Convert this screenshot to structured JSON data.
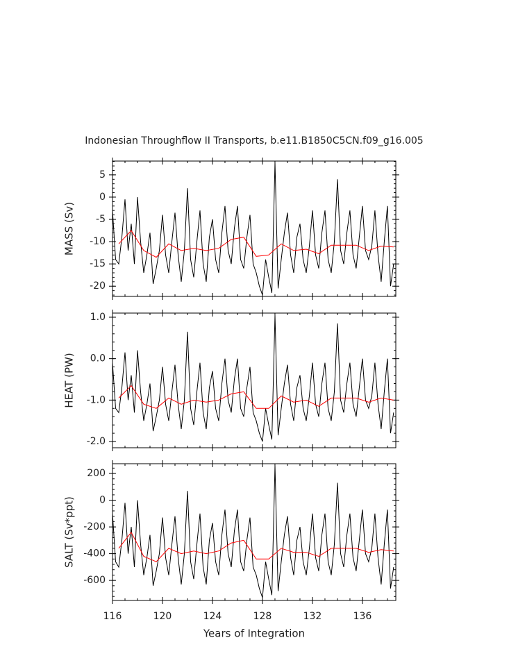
{
  "title": "Indonesian Throughflow II Transports, b.e11.B1850C5CN.f09_g16.005",
  "chart_data": [
    {
      "type": "line",
      "ylabel": "MASS (Sv)",
      "xlim": [
        116,
        138.67
      ],
      "xticks": [
        116,
        120,
        124,
        128,
        132,
        136
      ],
      "ylim": [
        -22.3,
        8.1
      ],
      "yticks": [
        5,
        0,
        -5,
        -10,
        -15,
        -20
      ],
      "series": [
        {
          "color": "#000000",
          "x": [
            116,
            116.25,
            116.5,
            116.75,
            117,
            117.25,
            117.5,
            117.75,
            118,
            118.25,
            118.5,
            118.75,
            119,
            119.25,
            119.5,
            119.75,
            120,
            120.25,
            120.5,
            120.75,
            121,
            121.25,
            121.5,
            121.75,
            122,
            122.25,
            122.5,
            122.75,
            123,
            123.25,
            123.5,
            123.75,
            124,
            124.25,
            124.5,
            124.75,
            125,
            125.25,
            125.5,
            125.75,
            126,
            126.25,
            126.5,
            126.75,
            127,
            127.25,
            127.5,
            127.75,
            128,
            128.25,
            128.5,
            128.75,
            129,
            129.25,
            129.5,
            129.75,
            130,
            130.25,
            130.5,
            130.75,
            131,
            131.25,
            131.5,
            131.75,
            132,
            132.25,
            132.5,
            132.75,
            133,
            133.25,
            133.5,
            133.75,
            134,
            134.25,
            134.5,
            134.75,
            135,
            135.25,
            135.5,
            135.75,
            136,
            136.25,
            136.5,
            136.75,
            137,
            137.25,
            137.5,
            137.75,
            138,
            138.25,
            138.5
          ],
          "values": [
            -3,
            -14,
            -15,
            -9,
            -0.5,
            -12,
            -6,
            -15,
            0,
            -10,
            -17,
            -13,
            -8,
            -19.5,
            -16,
            -12,
            -4,
            -13,
            -17,
            -10,
            -3.5,
            -13,
            -19,
            -12,
            2,
            -14,
            -18,
            -10,
            -3,
            -15,
            -19,
            -9,
            -5,
            -14,
            -17,
            -8,
            -2,
            -12,
            -15,
            -7,
            -2,
            -14,
            -16,
            -9,
            -4,
            -15,
            -17,
            -20,
            -22,
            -14,
            -18,
            -21.5,
            7.8,
            -20.5,
            -14,
            -8,
            -3.5,
            -13,
            -17,
            -9,
            -6,
            -14,
            -17,
            -11,
            -3,
            -13,
            -16,
            -8,
            -3,
            -14,
            -17,
            -10,
            4,
            -12,
            -15,
            -8,
            -3,
            -13,
            -16,
            -9,
            -2,
            -12,
            -14,
            -11,
            -3,
            -13,
            -19,
            -10,
            -2,
            -20,
            -15
          ]
        },
        {
          "color": "#ff0000",
          "x": [
            116.5,
            117.5,
            118.5,
            119.5,
            120.5,
            121.5,
            122.5,
            123.5,
            124.5,
            125.5,
            126.5,
            127.5,
            128.5,
            129.5,
            130.5,
            131.5,
            132.5,
            133.5,
            134.5,
            135.5,
            136.5,
            137.5,
            138.5
          ],
          "values": [
            -10.5,
            -7.5,
            -12,
            -13.5,
            -10.5,
            -12,
            -11.5,
            -12,
            -11.5,
            -9.5,
            -9,
            -13.3,
            -13,
            -10.5,
            -12,
            -11.7,
            -12.7,
            -10.8,
            -10.8,
            -10.8,
            -12,
            -11,
            -11.2
          ]
        }
      ]
    },
    {
      "type": "line",
      "ylabel": "HEAT (PW)",
      "xlim": [
        116,
        138.67
      ],
      "xticks": [
        116,
        120,
        124,
        128,
        132,
        136
      ],
      "ylim": [
        -2.15,
        1.1
      ],
      "yticks": [
        {
          "value": 1.0,
          "label": "1.0"
        },
        {
          "value": 0.0,
          "label": "0.0"
        },
        {
          "value": -1.0,
          "label": "-1.0"
        },
        {
          "value": -2.0,
          "label": "-2.0"
        }
      ],
      "series": [
        {
          "color": "#000000",
          "x": [
            116,
            116.25,
            116.5,
            116.75,
            117,
            117.25,
            117.5,
            117.75,
            118,
            118.25,
            118.5,
            118.75,
            119,
            119.25,
            119.5,
            119.75,
            120,
            120.25,
            120.5,
            120.75,
            121,
            121.25,
            121.5,
            121.75,
            122,
            122.25,
            122.5,
            122.75,
            123,
            123.25,
            123.5,
            123.75,
            124,
            124.25,
            124.5,
            124.75,
            125,
            125.25,
            125.5,
            125.75,
            126,
            126.25,
            126.5,
            126.75,
            127,
            127.25,
            127.5,
            127.75,
            128,
            128.25,
            128.5,
            128.75,
            129,
            129.25,
            129.5,
            129.75,
            130,
            130.25,
            130.5,
            130.75,
            131,
            131.25,
            131.5,
            131.75,
            132,
            132.25,
            132.5,
            132.75,
            133,
            133.25,
            133.5,
            133.75,
            134,
            134.25,
            134.5,
            134.75,
            135,
            135.25,
            135.5,
            135.75,
            136,
            136.25,
            136.5,
            136.75,
            137,
            137.25,
            137.5,
            137.75,
            138,
            138.25,
            138.5
          ],
          "values": [
            -0.1,
            -1.2,
            -1.3,
            -0.7,
            0.15,
            -1.0,
            -0.4,
            -1.3,
            0.2,
            -0.8,
            -1.5,
            -1.1,
            -0.6,
            -1.75,
            -1.4,
            -1.0,
            -0.2,
            -1.1,
            -1.5,
            -0.8,
            -0.15,
            -1.1,
            -1.7,
            -1.0,
            0.65,
            -1.2,
            -1.6,
            -0.8,
            -0.1,
            -1.3,
            -1.7,
            -0.7,
            -0.3,
            -1.2,
            -1.5,
            -0.6,
            0.0,
            -1.0,
            -1.3,
            -0.5,
            0.0,
            -1.2,
            -1.4,
            -0.7,
            -0.2,
            -1.3,
            -1.5,
            -1.8,
            -2.0,
            -1.2,
            -1.6,
            -1.95,
            1.05,
            -1.85,
            -1.2,
            -0.6,
            -0.15,
            -1.1,
            -1.5,
            -0.7,
            -0.4,
            -1.2,
            -1.5,
            -0.9,
            -0.1,
            -1.1,
            -1.4,
            -0.6,
            -0.1,
            -1.2,
            -1.5,
            -0.8,
            0.85,
            -1.0,
            -1.3,
            -0.6,
            -0.1,
            -1.1,
            -1.4,
            -0.7,
            0.0,
            -1.0,
            -1.2,
            -0.9,
            -0.1,
            -1.1,
            -1.7,
            -0.8,
            0.0,
            -1.8,
            -1.3
          ]
        },
        {
          "color": "#ff0000",
          "x": [
            116.5,
            117.5,
            118.5,
            119.5,
            120.5,
            121.5,
            122.5,
            123.5,
            124.5,
            125.5,
            126.5,
            127.5,
            128.5,
            129.5,
            130.5,
            131.5,
            132.5,
            133.5,
            134.5,
            135.5,
            136.5,
            137.5,
            138.5
          ],
          "values": [
            -0.95,
            -0.65,
            -1.1,
            -1.2,
            -0.95,
            -1.1,
            -1.0,
            -1.05,
            -1.0,
            -0.85,
            -0.8,
            -1.2,
            -1.2,
            -0.9,
            -1.05,
            -1.0,
            -1.15,
            -0.95,
            -0.95,
            -0.95,
            -1.05,
            -0.95,
            -1.0
          ]
        }
      ]
    },
    {
      "type": "line",
      "ylabel": "SALT (Sv*ppt)",
      "xlabel": "Years of Integration",
      "xlim": [
        116,
        138.67
      ],
      "xticks": [
        116,
        120,
        124,
        128,
        132,
        136
      ],
      "ylim": [
        -750,
        273
      ],
      "yticks": [
        200,
        0,
        -200,
        -400,
        -600
      ],
      "series": [
        {
          "color": "#000000",
          "x": [
            116,
            116.25,
            116.5,
            116.75,
            117,
            117.25,
            117.5,
            117.75,
            118,
            118.25,
            118.5,
            118.75,
            119,
            119.25,
            119.5,
            119.75,
            120,
            120.25,
            120.5,
            120.75,
            121,
            121.25,
            121.5,
            121.75,
            122,
            122.25,
            122.5,
            122.75,
            123,
            123.25,
            123.5,
            123.75,
            124,
            124.25,
            124.5,
            124.75,
            125,
            125.25,
            125.5,
            125.75,
            126,
            126.25,
            126.5,
            126.75,
            127,
            127.25,
            127.5,
            127.75,
            128,
            128.25,
            128.5,
            128.75,
            129,
            129.25,
            129.5,
            129.75,
            130,
            130.25,
            130.5,
            130.75,
            131,
            131.25,
            131.5,
            131.75,
            132,
            132.25,
            132.5,
            132.75,
            133,
            133.25,
            133.5,
            133.75,
            134,
            134.25,
            134.5,
            134.75,
            135,
            135.25,
            135.5,
            135.75,
            136,
            136.25,
            136.5,
            136.75,
            137,
            137.25,
            137.5,
            137.75,
            138,
            138.25,
            138.5
          ],
          "values": [
            -100,
            -460,
            -500,
            -300,
            -20,
            -400,
            -200,
            -500,
            0,
            -330,
            -560,
            -430,
            -260,
            -640,
            -530,
            -400,
            -130,
            -430,
            -560,
            -330,
            -120,
            -430,
            -630,
            -400,
            70,
            -460,
            -590,
            -330,
            -100,
            -500,
            -630,
            -300,
            -170,
            -460,
            -560,
            -260,
            -70,
            -400,
            -500,
            -230,
            -70,
            -460,
            -530,
            -300,
            -130,
            -500,
            -560,
            -660,
            -730,
            -460,
            -590,
            -710,
            260,
            -680,
            -460,
            -260,
            -120,
            -430,
            -560,
            -300,
            -200,
            -460,
            -560,
            -360,
            -100,
            -430,
            -530,
            -260,
            -100,
            -460,
            -560,
            -330,
            130,
            -400,
            -500,
            -260,
            -100,
            -430,
            -530,
            -300,
            -70,
            -400,
            -460,
            -360,
            -100,
            -430,
            -630,
            -330,
            -70,
            -660,
            -500
          ]
        },
        {
          "color": "#ff0000",
          "x": [
            116.5,
            117.5,
            118.5,
            119.5,
            120.5,
            121.5,
            122.5,
            123.5,
            124.5,
            125.5,
            126.5,
            127.5,
            128.5,
            129.5,
            130.5,
            131.5,
            132.5,
            133.5,
            134.5,
            135.5,
            136.5,
            137.5,
            138.5
          ],
          "values": [
            -360,
            -240,
            -420,
            -460,
            -360,
            -400,
            -380,
            -400,
            -380,
            -320,
            -300,
            -440,
            -440,
            -360,
            -390,
            -390,
            -420,
            -360,
            -360,
            -360,
            -390,
            -370,
            -380
          ]
        }
      ]
    }
  ]
}
